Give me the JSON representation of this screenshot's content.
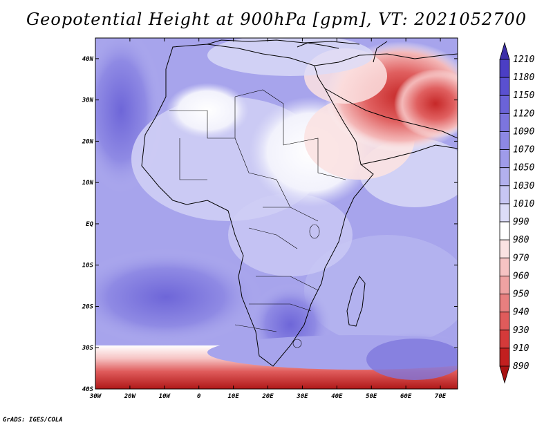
{
  "title": "Geopotential Height at 900hPa [gpm], VT: 2021052700",
  "credit": "GrADS: IGES/COLA",
  "map": {
    "lon_range": [
      -30,
      75
    ],
    "lat_range": [
      -40,
      45
    ],
    "lon_ticks": [
      "30W",
      "20W",
      "10W",
      "0",
      "10E",
      "20E",
      "30E",
      "40E",
      "50E",
      "60E",
      "70E"
    ],
    "lat_ticks": [
      "40S",
      "30S",
      "20S",
      "10S",
      "EQ",
      "10N",
      "20N",
      "30N",
      "40N"
    ]
  },
  "colorbar": {
    "levels": [
      "1210",
      "1180",
      "1150",
      "1120",
      "1090",
      "1070",
      "1050",
      "1030",
      "1010",
      "990",
      "980",
      "970",
      "960",
      "950",
      "940",
      "930",
      "910",
      "890"
    ],
    "colors": [
      "#3c2fa8",
      "#4b3ec4",
      "#5a50d0",
      "#6b63d8",
      "#7c75de",
      "#8d88e4",
      "#9f9be9",
      "#b2b0ee",
      "#c7c6f3",
      "#dcdcf8",
      "#ffffff",
      "#fbe2e2",
      "#f6c3c3",
      "#efa2a2",
      "#e87f7f",
      "#df5b5b",
      "#d43a3a",
      "#c21f1f",
      "#a81212"
    ]
  }
}
